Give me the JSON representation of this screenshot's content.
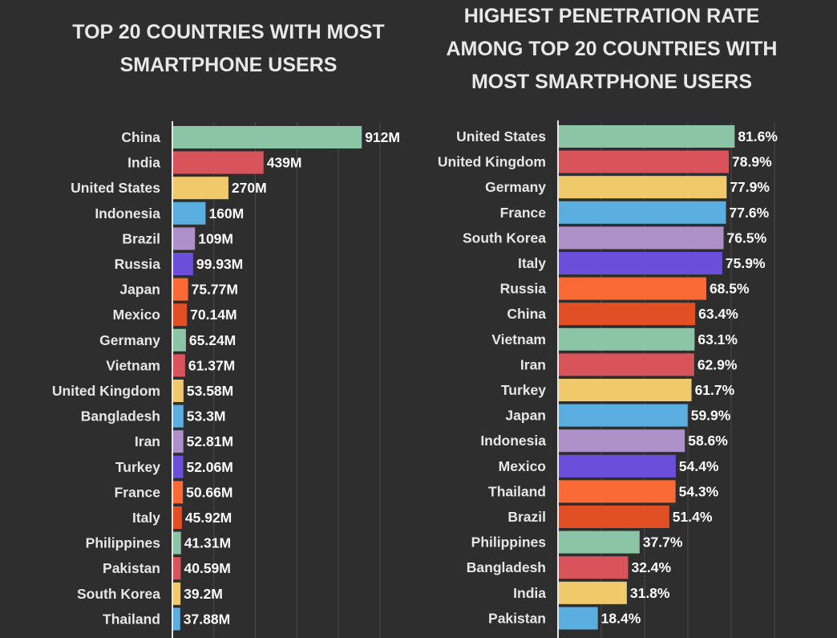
{
  "palette": [
    "#8cc4a6",
    "#d9535b",
    "#f0ca6a",
    "#5aaee0",
    "#ad90c8",
    "#6b4fdb",
    "#fb6a35",
    "#e24f25"
  ],
  "chart_data": [
    {
      "type": "bar",
      "orientation": "horizontal",
      "title": "TOP 20 COUNTRIES WITH MOST SMARTPHONE USERS",
      "title_lines": [
        "TOP 20 COUNTRIES WITH MOST",
        "SMARTPHONE USERS"
      ],
      "unit": "millions",
      "xlim": [
        0,
        1000
      ],
      "grid": true,
      "categories": [
        "China",
        "India",
        "United States",
        "Indonesia",
        "Brazil",
        "Russia",
        "Japan",
        "Mexico",
        "Germany",
        "Vietnam",
        "United Kingdom",
        "Bangladesh",
        "Iran",
        "Turkey",
        "France",
        "Italy",
        "Philippines",
        "Pakistan",
        "South Korea",
        "Thailand"
      ],
      "values": [
        912,
        439,
        270,
        160,
        109,
        99.93,
        75.77,
        70.14,
        65.24,
        61.37,
        53.58,
        53.3,
        52.81,
        52.06,
        50.66,
        45.92,
        41.31,
        40.59,
        39.2,
        37.88
      ],
      "labels": [
        "912M",
        "439M",
        "270M",
        "160M",
        "109M",
        "99.93M",
        "75.77M",
        "70.14M",
        "65.24M",
        "61.37M",
        "53.58M",
        "53.3M",
        "52.81M",
        "52.06M",
        "50.66M",
        "45.92M",
        "41.31M",
        "40.59M",
        "39.2M",
        "37.88M"
      ]
    },
    {
      "type": "bar",
      "orientation": "horizontal",
      "title": "HIGHEST PENETRATION RATE AMONG TOP 20 COUNTRIES WITH MOST SMARTPHONE USERS",
      "title_lines": [
        "HIGHEST PENETRATION RATE",
        "AMONG TOP 20 COUNTRIES WITH",
        "MOST SMARTPHONE USERS"
      ],
      "unit": "percent",
      "xlim": [
        0,
        100
      ],
      "grid": true,
      "categories": [
        "United States",
        "United Kingdom",
        "Germany",
        "France",
        "South Korea",
        "Italy",
        "Russia",
        "China",
        "Vietnam",
        "Iran",
        "Turkey",
        "Japan",
        "Indonesia",
        "Mexico",
        "Thailand",
        "Brazil",
        "Philippines",
        "Bangladesh",
        "India",
        "Pakistan"
      ],
      "values": [
        81.6,
        78.9,
        77.9,
        77.6,
        76.5,
        75.9,
        68.5,
        63.4,
        63.1,
        62.9,
        61.7,
        59.9,
        58.6,
        54.4,
        54.3,
        51.4,
        37.7,
        32.4,
        31.8,
        18.4
      ],
      "labels": [
        "81.6%",
        "78.9%",
        "77.9%",
        "77.6%",
        "76.5%",
        "75.9%",
        "68.5%",
        "63.4%",
        "63.1%",
        "62.9%",
        "61.7%",
        "59.9%",
        "58.6%",
        "54.4%",
        "54.3%",
        "51.4%",
        "37.7%",
        "32.4%",
        "31.8%",
        "18.4%"
      ]
    }
  ]
}
